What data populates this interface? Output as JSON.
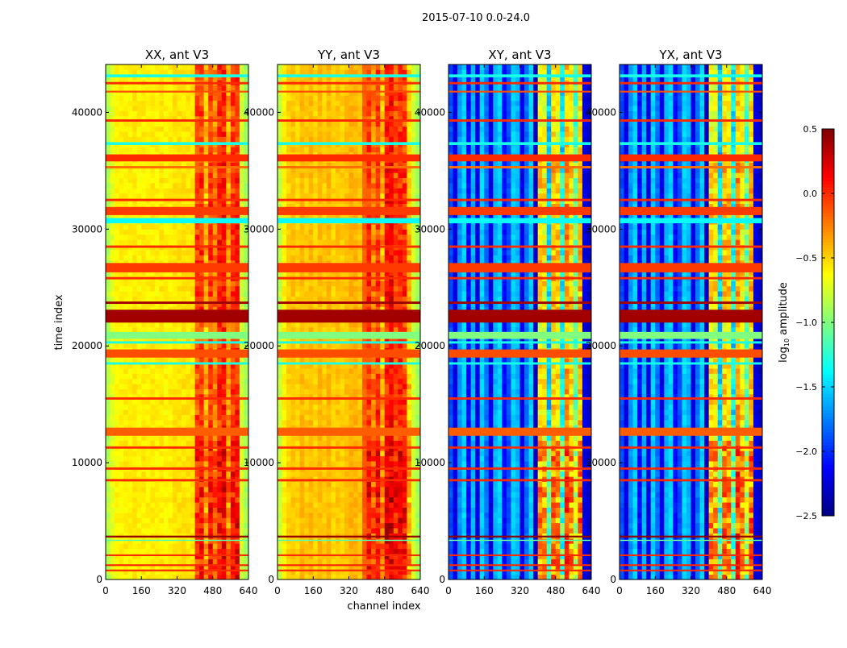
{
  "chart_data": {
    "type": "heatmap",
    "suptitle": "2015-07-10 0.0-24.0",
    "xlabel": "channel index",
    "ylabel": "time index",
    "xlim": [
      0,
      640
    ],
    "ylim": [
      0,
      44100
    ],
    "xticks": [
      0,
      160,
      320,
      480,
      640
    ],
    "yticks": [
      0,
      10000,
      20000,
      30000,
      40000
    ],
    "colorbar": {
      "label_prefix": "log",
      "label_sub": "10",
      "label_suffix": " amplitude",
      "range": [
        -2.5,
        0.5
      ],
      "ticks": [
        "0.5",
        "0.0",
        "−0.5",
        "−1.0",
        "−1.5",
        "−2.0",
        "−2.5"
      ],
      "tick_values": [
        0.5,
        0.0,
        -0.5,
        -1.0,
        -1.5,
        -2.0,
        -2.5
      ],
      "colormap": "jet"
    },
    "panels": [
      {
        "title": "XX, ant V3",
        "column_profile": [
          -0.85,
          -0.7,
          -0.62,
          -0.6,
          -0.58,
          -0.6,
          -0.57,
          -0.6,
          -0.58,
          -0.6,
          -0.58,
          -0.6,
          -0.57,
          -0.6,
          -0.58,
          -0.55,
          -0.55,
          -0.55,
          -0.55,
          -0.55,
          -0.15,
          -0.1,
          -0.45,
          -0.1,
          -0.3,
          -0.05,
          -0.0,
          -0.4,
          -0.1,
          -0.05,
          -0.75,
          -0.9
        ],
        "active_boost": 0.25
      },
      {
        "title": "YY, ant V3",
        "column_profile": [
          -0.8,
          -0.6,
          -0.5,
          -0.45,
          -0.5,
          -0.42,
          -0.48,
          -0.42,
          -0.5,
          -0.42,
          -0.48,
          -0.42,
          -0.5,
          -0.45,
          -0.48,
          -0.45,
          -0.4,
          -0.4,
          -0.45,
          -0.15,
          -0.1,
          -0.3,
          -0.1,
          -0.45,
          -0.0,
          0.05,
          -0.15,
          -0.05,
          -0.1,
          -0.55,
          -0.75,
          -0.9
        ],
        "active_boost": 0.3
      },
      {
        "title": "XY, ant V3",
        "column_profile": [
          -1.9,
          -2.2,
          -1.7,
          -1.5,
          -2.1,
          -1.6,
          -2.2,
          -1.5,
          -1.8,
          -2.2,
          -1.6,
          -1.5,
          -2.1,
          -1.9,
          -1.5,
          -1.6,
          -2.2,
          -1.8,
          -1.5,
          -2.3,
          -0.7,
          -0.75,
          -1.6,
          -0.6,
          -0.7,
          -1.5,
          -0.5,
          -0.7,
          -1.2,
          -0.6,
          -2.2,
          -2.3
        ],
        "active_boost": 0.6
      },
      {
        "title": "YX, ant V3",
        "column_profile": [
          -1.9,
          -2.2,
          -1.7,
          -1.5,
          -2.1,
          -1.6,
          -2.2,
          -1.5,
          -1.8,
          -2.2,
          -1.6,
          -1.5,
          -2.1,
          -1.9,
          -1.5,
          -1.6,
          -2.2,
          -1.8,
          -1.5,
          -2.3,
          -0.7,
          -0.75,
          -1.6,
          -0.6,
          -0.7,
          -1.5,
          -0.5,
          -0.7,
          -1.2,
          -0.6,
          -2.2,
          -2.3
        ],
        "active_boost": 0.6
      }
    ],
    "active_channel_range": [
      400,
      600
    ],
    "active_time_boost": [
      [
        0,
        12000,
        0.45
      ],
      [
        12000,
        20000,
        0.15
      ],
      [
        22000,
        36000,
        0.2
      ],
      [
        36000,
        44100,
        0.05
      ]
    ],
    "time_stripes": [
      [
        43000,
        43250,
        -1.3
      ],
      [
        42400,
        42600,
        0.0
      ],
      [
        41700,
        41850,
        -0.1
      ],
      [
        39200,
        39400,
        0.0
      ],
      [
        37200,
        37450,
        -1.3
      ],
      [
        35800,
        36400,
        0.0
      ],
      [
        35200,
        35400,
        -0.2
      ],
      [
        32400,
        32600,
        0.0
      ],
      [
        31200,
        31900,
        -0.05
      ],
      [
        30500,
        30950,
        -1.35
      ],
      [
        28400,
        28600,
        0.0
      ],
      [
        26300,
        27100,
        -0.05
      ],
      [
        25700,
        25900,
        0.0
      ],
      [
        23600,
        23800,
        0.4
      ],
      [
        22000,
        23100,
        0.4
      ],
      [
        20600,
        21200,
        -1.0
      ],
      [
        20200,
        20400,
        -1.3
      ],
      [
        19000,
        19700,
        -0.1
      ],
      [
        18400,
        18600,
        -1.3
      ],
      [
        15400,
        15600,
        0.0
      ],
      [
        12300,
        13000,
        -0.15
      ],
      [
        11200,
        11400,
        0.0
      ],
      [
        9400,
        9600,
        0.0
      ],
      [
        8400,
        8600,
        0.0
      ],
      [
        3600,
        3750,
        0.45
      ],
      [
        3300,
        3400,
        -1.1
      ],
      [
        2000,
        2150,
        0.0
      ],
      [
        1150,
        1300,
        0.0
      ],
      [
        700,
        850,
        0.0
      ]
    ]
  }
}
